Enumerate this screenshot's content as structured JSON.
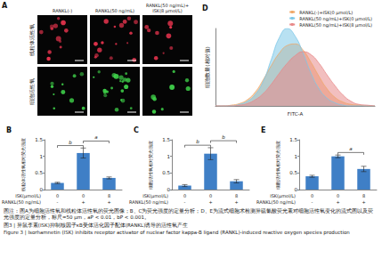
{
  "figure": {
    "panel_a": {
      "letter": "A",
      "columns": [
        [
          "RANKL(-)"
        ],
        [
          "RANKL(50 ng/mL)"
        ],
        [
          "RANKL(50 ng/mL)+",
          "ISK(8 μmol/L)"
        ]
      ],
      "rows": [
        "线粒体活性氧",
        "细胞活性氧"
      ]
    },
    "caption": {
      "note": "图注：图A为细胞活性氧和线粒体活性氧的荧光图像；B、C为荧光强度的定量分析；D、E为流式细胞术检测异硫氰酸荧光素对细胞活性氧变化的流式图以及荧光强度的定量分析，标尺=50 μm，aP < 0.01，bP < 0.001。",
      "title_zh": "图3 | 异鼠李素(ISK)抑制核因子κB受体活化因子配体(RANKL)诱导的活性氧产生",
      "title_en": "Figure 3 | Isorhamnetin (ISK) inhibits receptor activator of nuclear factor kappa-B ligand (RANKL)-induced reactive oxygen species production"
    }
  },
  "chart_data": [
    {
      "type": "line",
      "title": "D",
      "x_label": "FITC-A",
      "y_label": "细胞数量(相对值)",
      "x": [
        0,
        5,
        10,
        15,
        20,
        25,
        30,
        35,
        40,
        45,
        50,
        55,
        60,
        65,
        70,
        75,
        80,
        85,
        90,
        95,
        100
      ],
      "series": [
        {
          "name": "RANKL(-)+ISK(0 μmol/L)",
          "color": "#f0a868",
          "values": [
            0,
            0,
            1,
            3,
            8,
            18,
            34,
            52,
            68,
            78,
            80,
            72,
            56,
            38,
            22,
            11,
            5,
            2,
            1,
            0,
            0
          ]
        },
        {
          "name": "RANKL(50 ng/mL)+ISK(0 μmol/L)",
          "color": "#7ec8e8",
          "values": [
            0,
            0,
            0,
            2,
            6,
            15,
            32,
            60,
            88,
            100,
            90,
            68,
            42,
            22,
            10,
            4,
            1,
            0,
            0,
            0,
            0
          ]
        },
        {
          "name": "RANKL(50 ng/mL)+ISK(8 μmol/L)",
          "color": "#e88a8a",
          "values": [
            0,
            0,
            0,
            1,
            3,
            8,
            16,
            28,
            42,
            55,
            65,
            70,
            66,
            55,
            40,
            26,
            14,
            6,
            2,
            1,
            0
          ]
        }
      ],
      "xlim": [
        0,
        100
      ],
      "ylim": [
        0,
        100
      ],
      "tick_labels": false,
      "legend": "upper right"
    },
    {
      "type": "bar",
      "title": "B",
      "y_label": "线粒体活性氧相对荧光强度",
      "x_rows": [
        {
          "label": "ISK(μmol/L)",
          "values": [
            "0",
            "0",
            "8"
          ]
        },
        {
          "label": "RANKL(50 ng/mL)",
          "values": [
            "-",
            "+",
            "+"
          ]
        }
      ],
      "values": [
        0.2,
        1.1,
        0.35
      ],
      "errors": [
        0.02,
        0.15,
        0.03
      ],
      "color": "#3f7fc6",
      "ylim": [
        0,
        1.5
      ],
      "yticks": [
        0,
        0.5,
        1,
        1.5
      ],
      "annotations": [
        {
          "text": "b",
          "between": [
            0,
            1
          ]
        },
        {
          "text": "a",
          "between": [
            1,
            2
          ]
        }
      ]
    },
    {
      "type": "bar",
      "title": "C",
      "y_label": "细胞活性氧相对荧光强度",
      "x_rows": [
        {
          "label": "ISK(μmol/L)",
          "values": [
            "0",
            "0",
            "8"
          ]
        },
        {
          "label": "RANKL(50 ng/mL)",
          "values": [
            "-",
            "+",
            "+"
          ]
        }
      ],
      "values": [
        0.12,
        1.08,
        0.25
      ],
      "errors": [
        0.03,
        0.18,
        0.05
      ],
      "color": "#3f7fc6",
      "ylim": [
        0,
        1.5
      ],
      "yticks": [
        0,
        0.5,
        1,
        1.5
      ],
      "annotations": [
        {
          "text": "b",
          "between": [
            0,
            1
          ]
        },
        {
          "text": "b",
          "between": [
            1,
            2
          ]
        }
      ]
    },
    {
      "type": "bar",
      "title": "E",
      "y_label": "细胞活性氧相对荧光强度",
      "x_rows": [
        {
          "label": "ISK(μmol/L)",
          "values": [
            "0",
            "0",
            "8"
          ]
        },
        {
          "label": "RANKL(50 ng/mL)",
          "values": [
            "-",
            "+",
            "+"
          ]
        }
      ],
      "values": [
        0.4,
        1.0,
        0.62
      ],
      "errors": [
        0.03,
        0.04,
        0.08
      ],
      "color": "#3f7fc6",
      "ylim": [
        0,
        1.5
      ],
      "yticks": [
        0,
        0.5,
        1,
        1.5
      ],
      "annotations": [
        {
          "text": "a",
          "between": [
            1,
            2
          ]
        }
      ]
    }
  ]
}
